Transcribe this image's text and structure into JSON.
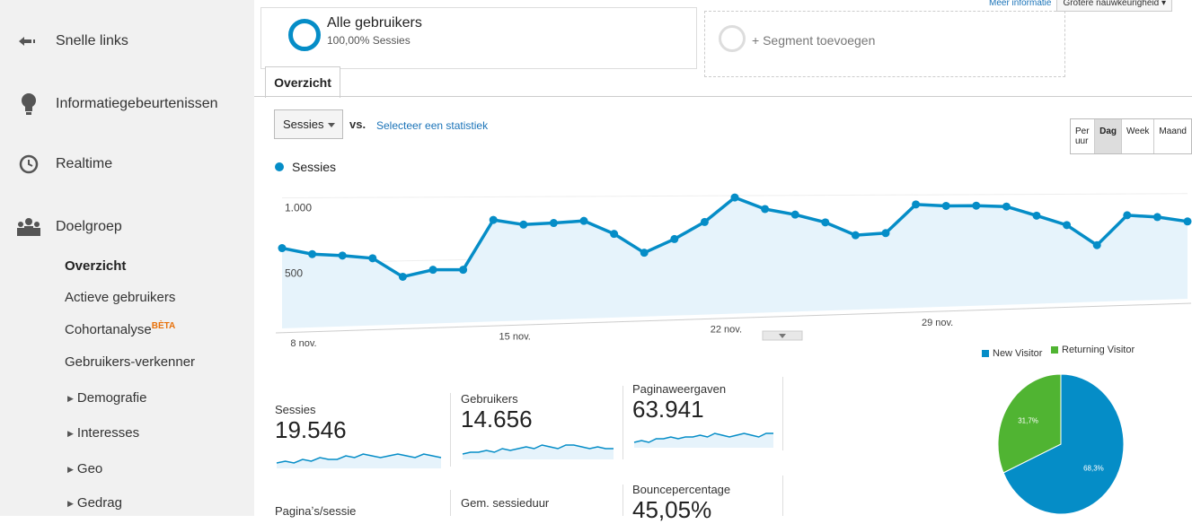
{
  "sidebar": {
    "items": [
      {
        "label": "Snelle links",
        "icon": "arrow-left-icon"
      },
      {
        "label": "Informatiegebeurtenissen",
        "icon": "lightbulb-icon"
      },
      {
        "label": "Realtime",
        "icon": "clock-icon"
      },
      {
        "label": "Doelgroep",
        "icon": "people-icon"
      }
    ],
    "sub_items": [
      {
        "label": "Overzicht",
        "active": true
      },
      {
        "label": "Actieve gebruikers"
      },
      {
        "label": "Cohortanalyse",
        "badge": "BÈTA"
      },
      {
        "label": "Gebruikers-verkenner"
      },
      {
        "label": "Demografie",
        "expandable": true
      },
      {
        "label": "Interesses",
        "expandable": true
      },
      {
        "label": "Geo",
        "expandable": true
      },
      {
        "label": "Gedrag",
        "expandable": true
      }
    ]
  },
  "topbar": {
    "link": "Meer informatie",
    "precision": "Grotere nauwkeurigheid"
  },
  "segment": {
    "title": "Alle gebruikers",
    "subtitle": "100,00% Sessies",
    "add_label": "+ Segment toevoegen"
  },
  "tab": {
    "label": "Overzicht"
  },
  "controls": {
    "metric": "Sessies",
    "vs": "vs.",
    "select_metric": "Selecteer een statistiek",
    "periods": [
      "Per uur",
      "Dag",
      "Week",
      "Maand"
    ],
    "active_period": "Dag"
  },
  "chart_data": [
    {
      "type": "area",
      "series": [
        {
          "name": "Sessies",
          "values": [
            615,
            565,
            550,
            525,
            375,
            425,
            420,
            815,
            775,
            785,
            800,
            690,
            530,
            640,
            780,
            985,
            885,
            835,
            765,
            650,
            665,
            915,
            900,
            900,
            890,
            805,
            715,
            525,
            800,
            780,
            735
          ]
        }
      ],
      "x": [
        "8 nov.",
        "",
        "",
        "",
        "",
        "",
        "",
        "15 nov.",
        "",
        "",
        "",
        "",
        "",
        "",
        "22 nov.",
        "",
        "",
        "",
        "",
        "",
        "",
        "29 nov.",
        "",
        "",
        "",
        "",
        "",
        "",
        "",
        "",
        ""
      ],
      "x_tick_labels": [
        "8 nov.",
        "15 nov.",
        "22 nov.",
        "29 nov."
      ],
      "y_tick_labels": [
        "1.000",
        "500"
      ],
      "ylim": [
        0,
        1100
      ],
      "color": "#058dc7",
      "grid": true,
      "legend": "top-left"
    },
    {
      "type": "pie",
      "categories": [
        "New Visitor",
        "Returning Visitor"
      ],
      "values": [
        68.3,
        31.7
      ],
      "data_labels": [
        "68,3%",
        "31,7%"
      ],
      "colors": [
        "#058dc7",
        "#50b432"
      ],
      "legend": "top"
    }
  ],
  "metrics": [
    {
      "label": "Sessies",
      "value": "19.546",
      "spark": [
        3,
        4,
        3,
        5,
        4,
        6,
        5,
        5,
        7,
        6,
        8,
        7,
        6,
        7,
        8,
        7,
        6,
        8,
        7,
        6
      ]
    },
    {
      "label": "Gebruikers",
      "value": "14.656",
      "spark": [
        3,
        4,
        4,
        5,
        4,
        6,
        5,
        6,
        7,
        6,
        8,
        7,
        6,
        8,
        8,
        7,
        6,
        7,
        6,
        6
      ]
    },
    {
      "label": "Paginaweergaven",
      "value": "63.941",
      "spark": [
        3,
        4,
        3,
        5,
        5,
        6,
        5,
        6,
        6,
        7,
        6,
        8,
        7,
        6,
        7,
        8,
        7,
        6,
        8,
        8
      ]
    }
  ],
  "metrics_row2": [
    {
      "label": "Paginaʼs/sessie"
    },
    {
      "label": "Gem. sessieduur"
    },
    {
      "label": "Bouncepercentage",
      "value": "45,05%"
    }
  ]
}
